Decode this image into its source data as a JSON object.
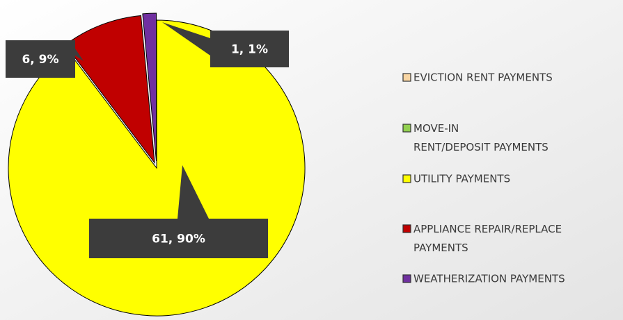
{
  "chart_data": {
    "type": "pie",
    "categories": [
      "EVICTION RENT PAYMENTS",
      "MOVE-IN RENT/DEPOSIT PAYMENTS",
      "UTILITY PAYMENTS",
      "APPLIANCE REPAIR/REPLACE PAYMENTS",
      "WEATHERIZATION PAYMENTS"
    ],
    "values": [
      0,
      0,
      61,
      6,
      1
    ],
    "value_labels": [
      null,
      null,
      "61, 90%",
      "6, 9%",
      "1, 1%"
    ],
    "colors": [
      "#f8d5a3",
      "#92d050",
      "#ffff00",
      "#c00000",
      "#7030a0"
    ],
    "legend": "right"
  }
}
